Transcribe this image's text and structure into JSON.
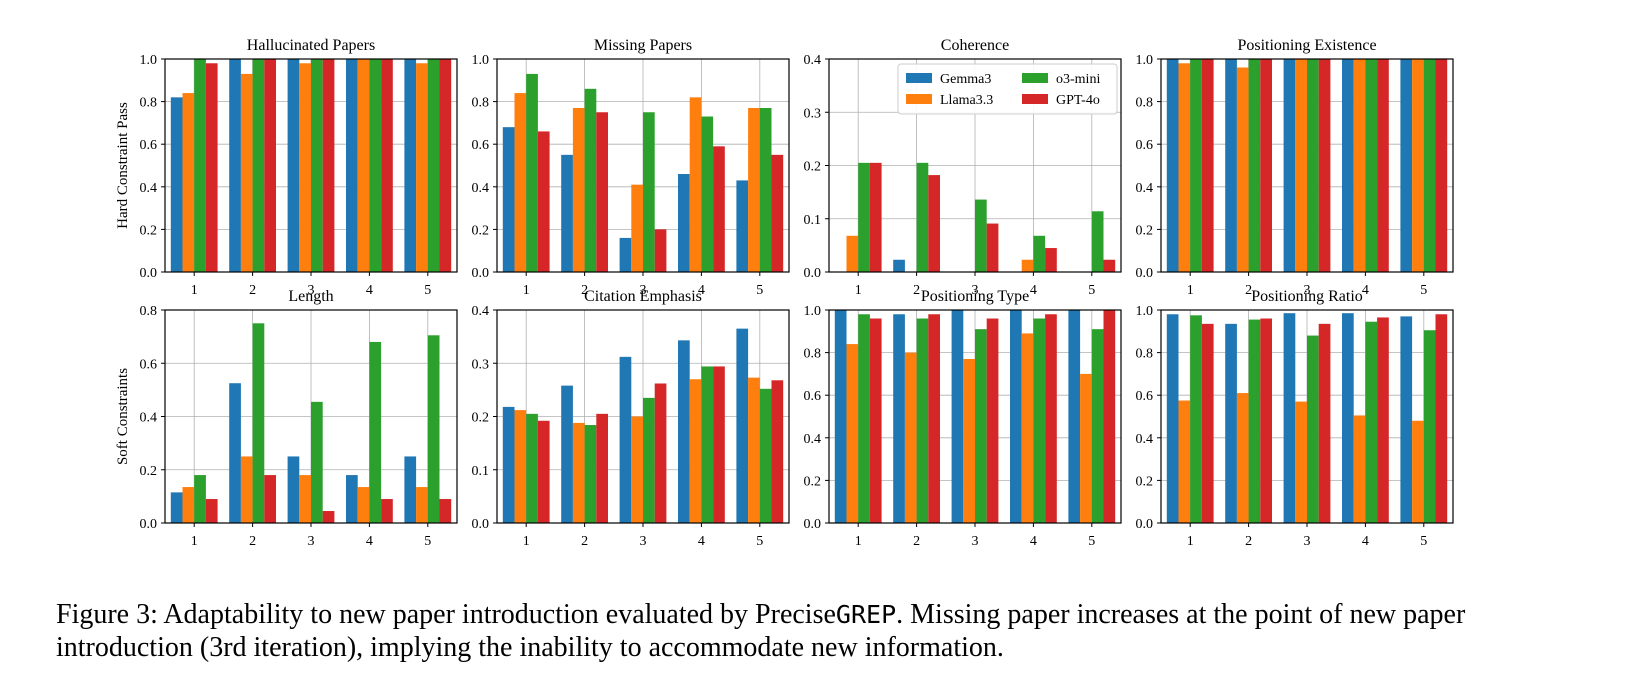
{
  "colors": {
    "Gemma3": "#1f77b4",
    "Llama3.3": "#ff7f0e",
    "o3-mini": "#2ca02c",
    "GPT-4o": "#d62728",
    "grid": "#b0b0b0"
  },
  "legend": {
    "location": "upper-right of Coherence panel",
    "entries": [
      "Gemma3",
      "Llama3.3",
      "o3-mini",
      "GPT-4o"
    ]
  },
  "row_labels": [
    "Hard Constraint Pass",
    "Soft Constraints"
  ],
  "caption": {
    "prefix": "Figure 3: Adaptability to new paper introduction evaluated by Precise",
    "code": "GREP",
    "suffix": ". Missing paper increases at the point of new paper introduction (3rd iteration), implying the inability to accommodate new information."
  },
  "chart_data": [
    {
      "type": "bar",
      "title": "Hallucinated Papers",
      "ylabel": "Hard Constraint Pass",
      "categories": [
        "1",
        "2",
        "3",
        "4",
        "5"
      ],
      "ylim": [
        0,
        1.0
      ],
      "yticks": [
        "0.0",
        "0.2",
        "0.4",
        "0.6",
        "0.8",
        "1.0"
      ],
      "grid": true,
      "series": [
        {
          "name": "Gemma3",
          "values": [
            0.82,
            1.0,
            1.0,
            1.0,
            1.0
          ]
        },
        {
          "name": "Llama3.3",
          "values": [
            0.84,
            0.93,
            0.98,
            1.0,
            0.98
          ]
        },
        {
          "name": "o3-mini",
          "values": [
            1.0,
            1.0,
            1.0,
            1.0,
            1.0
          ]
        },
        {
          "name": "GPT-4o",
          "values": [
            0.98,
            1.0,
            1.0,
            1.0,
            1.0
          ]
        }
      ]
    },
    {
      "type": "bar",
      "title": "Missing Papers",
      "ylabel": "",
      "categories": [
        "1",
        "2",
        "3",
        "4",
        "5"
      ],
      "ylim": [
        0,
        1.0
      ],
      "yticks": [
        "0.0",
        "0.2",
        "0.4",
        "0.6",
        "0.8",
        "1.0"
      ],
      "grid": true,
      "series": [
        {
          "name": "Gemma3",
          "values": [
            0.68,
            0.55,
            0.16,
            0.46,
            0.43
          ]
        },
        {
          "name": "Llama3.3",
          "values": [
            0.84,
            0.77,
            0.41,
            0.82,
            0.77
          ]
        },
        {
          "name": "o3-mini",
          "values": [
            0.93,
            0.86,
            0.75,
            0.73,
            0.77
          ]
        },
        {
          "name": "GPT-4o",
          "values": [
            0.66,
            0.75,
            0.2,
            0.59,
            0.55
          ]
        }
      ]
    },
    {
      "type": "bar",
      "title": "Coherence",
      "ylabel": "",
      "categories": [
        "1",
        "2",
        "3",
        "4",
        "5"
      ],
      "ylim": [
        0,
        0.4
      ],
      "yticks": [
        "0.0",
        "0.1",
        "0.2",
        "0.3",
        "0.4"
      ],
      "grid": true,
      "series": [
        {
          "name": "Gemma3",
          "values": [
            0,
            0.023,
            0,
            0,
            0
          ]
        },
        {
          "name": "Llama3.3",
          "values": [
            0.068,
            0,
            0,
            0.023,
            0
          ]
        },
        {
          "name": "o3-mini",
          "values": [
            0.205,
            0.205,
            0.136,
            0.068,
            0.114
          ]
        },
        {
          "name": "GPT-4o",
          "values": [
            0.205,
            0.182,
            0.091,
            0.045,
            0.023
          ]
        }
      ]
    },
    {
      "type": "bar",
      "title": "Positioning Existence",
      "ylabel": "",
      "categories": [
        "1",
        "2",
        "3",
        "4",
        "5"
      ],
      "ylim": [
        0,
        1.0
      ],
      "yticks": [
        "0.0",
        "0.2",
        "0.4",
        "0.6",
        "0.8",
        "1.0"
      ],
      "grid": true,
      "series": [
        {
          "name": "Gemma3",
          "values": [
            1.0,
            1.0,
            1.0,
            1.0,
            1.0
          ]
        },
        {
          "name": "Llama3.3",
          "values": [
            0.98,
            0.96,
            1.0,
            1.0,
            1.0
          ]
        },
        {
          "name": "o3-mini",
          "values": [
            1.0,
            1.0,
            1.0,
            1.0,
            1.0
          ]
        },
        {
          "name": "GPT-4o",
          "values": [
            1.0,
            1.0,
            1.0,
            1.0,
            1.0
          ]
        }
      ]
    },
    {
      "type": "bar",
      "title": "Length",
      "ylabel": "Soft Constraints",
      "categories": [
        "1",
        "2",
        "3",
        "4",
        "5"
      ],
      "ylim": [
        0,
        0.8
      ],
      "yticks": [
        "0.0",
        "0.2",
        "0.4",
        "0.6",
        "0.8"
      ],
      "grid": true,
      "series": [
        {
          "name": "Gemma3",
          "values": [
            0.115,
            0.525,
            0.25,
            0.18,
            0.25
          ]
        },
        {
          "name": "Llama3.3",
          "values": [
            0.135,
            0.25,
            0.18,
            0.135,
            0.135
          ]
        },
        {
          "name": "o3-mini",
          "values": [
            0.18,
            0.75,
            0.455,
            0.68,
            0.705
          ]
        },
        {
          "name": "GPT-4o",
          "values": [
            0.09,
            0.18,
            0.045,
            0.09,
            0.09
          ]
        }
      ]
    },
    {
      "type": "bar",
      "title": "Citation Emphasis",
      "ylabel": "",
      "categories": [
        "1",
        "2",
        "3",
        "4",
        "5"
      ],
      "ylim": [
        0,
        0.4
      ],
      "yticks": [
        "0.0",
        "0.1",
        "0.2",
        "0.3",
        "0.4"
      ],
      "grid": true,
      "series": [
        {
          "name": "Gemma3",
          "values": [
            0.218,
            0.258,
            0.312,
            0.343,
            0.365
          ]
        },
        {
          "name": "Llama3.3",
          "values": [
            0.212,
            0.188,
            0.2,
            0.27,
            0.273
          ]
        },
        {
          "name": "o3-mini",
          "values": [
            0.205,
            0.184,
            0.235,
            0.294,
            0.252
          ]
        },
        {
          "name": "GPT-4o",
          "values": [
            0.192,
            0.205,
            0.262,
            0.294,
            0.268
          ]
        }
      ]
    },
    {
      "type": "bar",
      "title": "Positioning Type",
      "ylabel": "",
      "categories": [
        "1",
        "2",
        "3",
        "4",
        "5"
      ],
      "ylim": [
        0,
        1.0
      ],
      "yticks": [
        "0.0",
        "0.2",
        "0.4",
        "0.6",
        "0.8",
        "1.0"
      ],
      "grid": true,
      "series": [
        {
          "name": "Gemma3",
          "values": [
            1.0,
            0.98,
            1.0,
            1.0,
            1.0
          ]
        },
        {
          "name": "Llama3.3",
          "values": [
            0.84,
            0.8,
            0.77,
            0.89,
            0.7
          ]
        },
        {
          "name": "o3-mini",
          "values": [
            0.98,
            0.96,
            0.91,
            0.96,
            0.91
          ]
        },
        {
          "name": "GPT-4o",
          "values": [
            0.96,
            0.98,
            0.96,
            0.98,
            1.0
          ]
        }
      ]
    },
    {
      "type": "bar",
      "title": "Positioning Ratio",
      "ylabel": "",
      "categories": [
        "1",
        "2",
        "3",
        "4",
        "5"
      ],
      "ylim": [
        0,
        1.0
      ],
      "yticks": [
        "0.0",
        "0.2",
        "0.4",
        "0.6",
        "0.8",
        "1.0"
      ],
      "grid": true,
      "series": [
        {
          "name": "Gemma3",
          "values": [
            0.98,
            0.935,
            0.985,
            0.985,
            0.97
          ]
        },
        {
          "name": "Llama3.3",
          "values": [
            0.575,
            0.61,
            0.57,
            0.505,
            0.48
          ]
        },
        {
          "name": "o3-mini",
          "values": [
            0.975,
            0.955,
            0.88,
            0.945,
            0.905
          ]
        },
        {
          "name": "GPT-4o",
          "values": [
            0.935,
            0.96,
            0.935,
            0.965,
            0.98
          ]
        }
      ]
    }
  ]
}
